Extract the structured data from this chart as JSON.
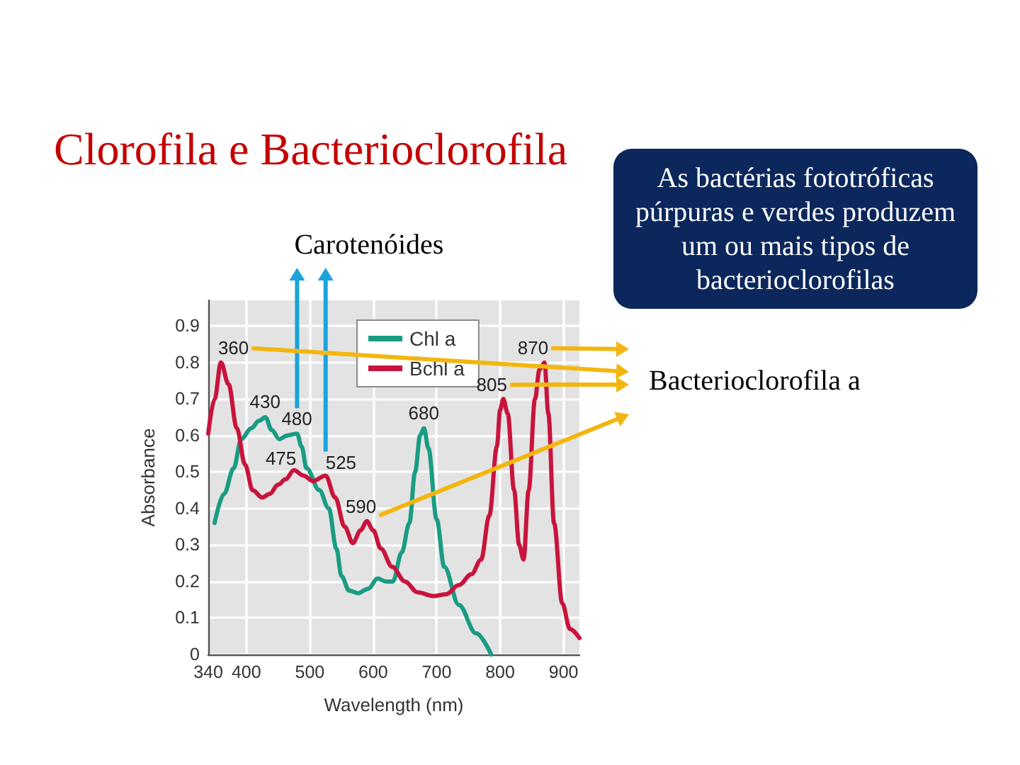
{
  "chart_data": {
    "type": "line",
    "title": "Clorofila e Bacterioclorofila",
    "xlabel": "Wavelength (nm)",
    "ylabel": "Absorbance",
    "xlim": [
      340,
      925
    ],
    "xticks": [
      340,
      400,
      500,
      600,
      700,
      800,
      900
    ],
    "ylim": [
      0,
      0.97
    ],
    "yticks": [
      0,
      0.1,
      0.2,
      0.3,
      0.4,
      0.5,
      0.6,
      0.7,
      0.8,
      0.9
    ],
    "grid": true,
    "legend": "top",
    "marker": "none",
    "line_style": "solid",
    "series": [
      {
        "name": "Chl a",
        "color": "#1a9c84",
        "x": [
          350,
          365,
          380,
          392,
          408,
          420,
          430,
          440,
          452,
          465,
          480,
          487,
          495,
          515,
          530,
          542,
          550,
          562,
          576,
          592,
          607,
          620,
          631,
          645,
          657,
          666,
          674,
          680,
          687,
          700,
          712,
          735,
          762,
          786
        ],
        "values": [
          0.36,
          0.44,
          0.51,
          0.59,
          0.62,
          0.64,
          0.65,
          0.615,
          0.59,
          0.6,
          0.605,
          0.57,
          0.51,
          0.45,
          0.4,
          0.29,
          0.215,
          0.175,
          0.168,
          0.18,
          0.208,
          0.2,
          0.2,
          0.28,
          0.36,
          0.5,
          0.6,
          0.62,
          0.565,
          0.37,
          0.24,
          0.136,
          0.058,
          0
        ]
      },
      {
        "name": "Bchl a",
        "color": "#c8143c",
        "x": [
          340,
          350,
          360,
          372,
          385,
          398,
          410,
          425,
          437,
          450,
          462,
          475,
          490,
          505,
          525,
          540,
          555,
          568,
          580,
          590,
          600,
          612,
          630,
          650,
          670,
          695,
          715,
          735,
          755,
          770,
          783,
          795,
          800,
          805,
          812,
          822,
          830,
          837,
          845,
          855,
          862,
          870,
          876,
          885,
          898,
          910,
          925
        ],
        "values": [
          0.605,
          0.7,
          0.8,
          0.74,
          0.62,
          0.52,
          0.45,
          0.43,
          0.44,
          0.465,
          0.48,
          0.505,
          0.49,
          0.475,
          0.49,
          0.43,
          0.35,
          0.305,
          0.34,
          0.365,
          0.34,
          0.29,
          0.24,
          0.2,
          0.17,
          0.16,
          0.165,
          0.19,
          0.22,
          0.26,
          0.38,
          0.57,
          0.67,
          0.7,
          0.66,
          0.45,
          0.3,
          0.26,
          0.45,
          0.7,
          0.78,
          0.8,
          0.66,
          0.36,
          0.14,
          0.07,
          0.045
        ]
      }
    ],
    "annotations": [
      {
        "text": "360",
        "x": 360,
        "y": 0.8
      },
      {
        "text": "430",
        "x": 430,
        "y": 0.65
      },
      {
        "text": "480",
        "x": 480,
        "y": 0.605
      },
      {
        "text": "475",
        "x": 475,
        "y": 0.505
      },
      {
        "text": "525",
        "x": 525,
        "y": 0.49
      },
      {
        "text": "590",
        "x": 590,
        "y": 0.365
      },
      {
        "text": "680",
        "x": 680,
        "y": 0.62
      },
      {
        "text": "805",
        "x": 805,
        "y": 0.7
      },
      {
        "text": "870",
        "x": 870,
        "y": 0.8
      },
      "Carotenóides",
      "As bactérias fototróficas púrpuras e verdes produzem um ou mais tipos de bacterioclorofilas",
      "Bacterioclorofila a"
    ]
  }
}
